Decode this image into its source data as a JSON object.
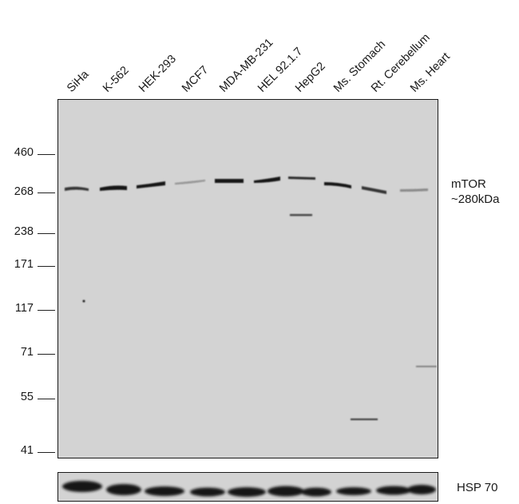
{
  "lanes": [
    "SiHa",
    "K-562",
    "HEK-293",
    "MCF7",
    "MDA-MB-231",
    "HEL 92.1.7",
    "HepG2",
    "Ms. Stomach",
    "Rt. Cerebellum",
    "Ms. Heart"
  ],
  "markers": [
    "460",
    "268",
    "238",
    "171",
    "117",
    "71",
    "55",
    "41"
  ],
  "target": {
    "name": "mTOR",
    "size": "~280kDa"
  },
  "control": {
    "name": "HSP 70"
  },
  "colors": {
    "membrane": "#d3d3d3",
    "band": "#141414",
    "frame": "#1a1a1a"
  }
}
